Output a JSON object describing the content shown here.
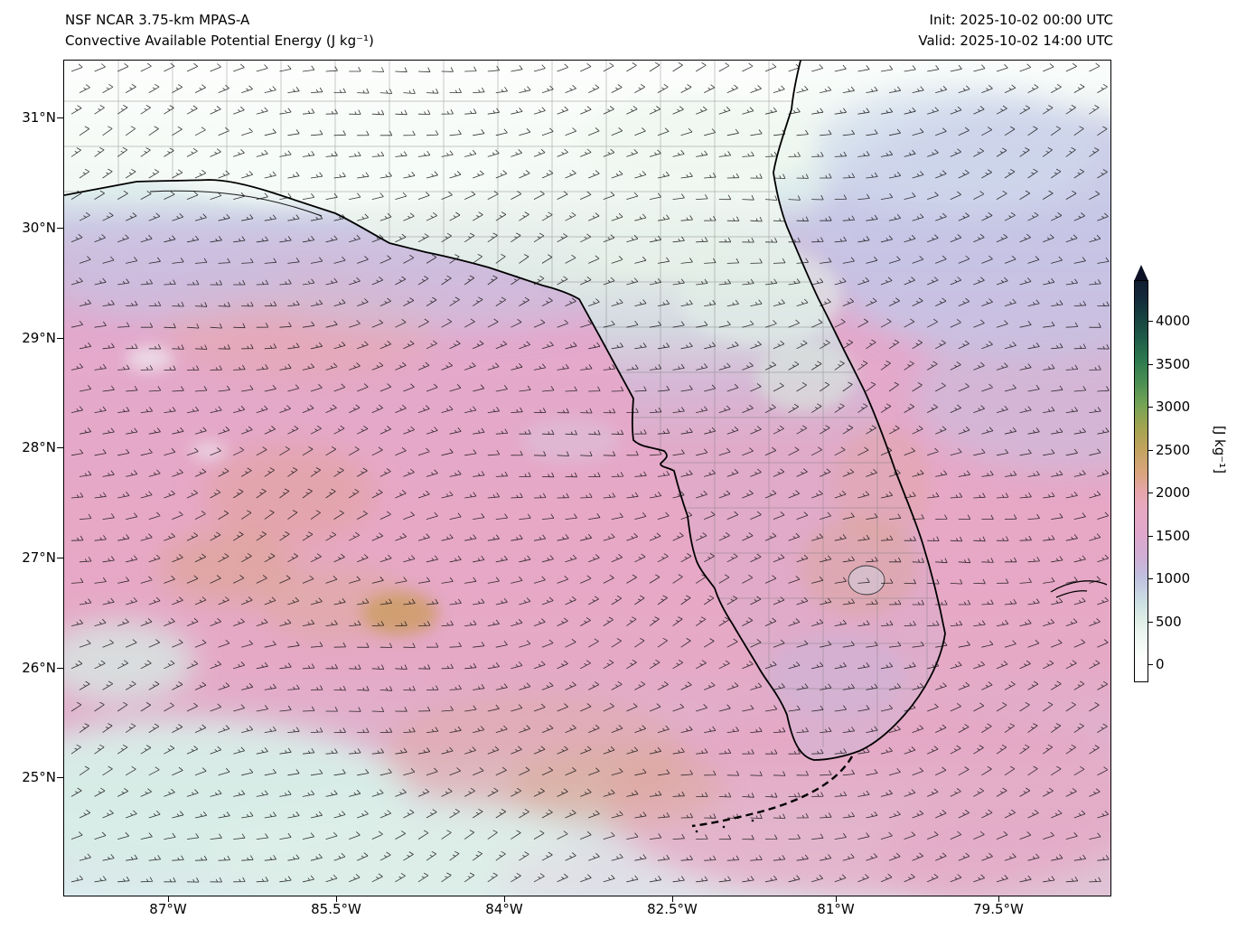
{
  "header": {
    "model": "NSF NCAR 3.75-km MPAS-A",
    "variable": "Convective Available Potential Energy (J kg⁻¹)",
    "init": "Init: 2025-10-02 00:00 UTC",
    "valid": "Valid: 2025-10-02 14:00 UTC"
  },
  "axes": {
    "lat": [
      "31°N",
      "30°N",
      "29°N",
      "28°N",
      "27°N",
      "26°N",
      "25°N"
    ],
    "lon": [
      "87°W",
      "85.5°W",
      "84°W",
      "82.5°W",
      "81°W",
      "79.5°W"
    ]
  },
  "colorbar": {
    "unit": "[J kg⁻¹]",
    "ticks": [
      "4000",
      "3500",
      "3000",
      "2500",
      "2000",
      "1500",
      "1000",
      "500",
      "0"
    ]
  },
  "chart_data": {
    "type": "heatmap",
    "title": "Convective Available Potential Energy (J kg⁻¹)",
    "model": "NSF NCAR 3.75-km MPAS-A",
    "init_time": "2025-10-02 00:00 UTC",
    "valid_time": "2025-10-02 14:00 UTC",
    "region": "Florida peninsula, southeastern US, eastern Gulf of Mexico, western Atlantic",
    "x_axis": {
      "label": "longitude",
      "ticks": [
        "87°W",
        "85.5°W",
        "84°W",
        "82.5°W",
        "81°W",
        "79.5°W"
      ],
      "range": [
        "87.9°W",
        "78.6°W"
      ]
    },
    "y_axis": {
      "label": "latitude",
      "ticks": [
        "31°N",
        "30°N",
        "29°N",
        "28°N",
        "27°N",
        "26°N",
        "25°N"
      ],
      "range": [
        "23.9°N",
        "31.5°N"
      ]
    },
    "colorbar": {
      "label": "[J kg⁻¹]",
      "tick_values": [
        0,
        500,
        1000,
        1500,
        2000,
        2500,
        3000,
        3500,
        4000
      ],
      "extend": "max-arrow at top",
      "colors_low_to_high": [
        "#ffffff",
        "#dfeee7",
        "#c0c0df",
        "#e0a7cc",
        "#e6a6ad",
        "#d9a47e",
        "#c2a35e",
        "#75a455",
        "#2e7a4f",
        "#16413f",
        "#101d30"
      ]
    },
    "overlays": [
      "wind barbs (predominantly easterly flow)",
      "coastlines",
      "county boundaries",
      "Florida Keys (dashed)",
      "Lake Okeechobee"
    ],
    "approx_field_values": [
      {
        "region": "inland Georgia / Alabama north of ~30.5°N",
        "cape_j_per_kg": "0-250"
      },
      {
        "region": "Gulf-coast transition band near 30°N",
        "cape_j_per_kg": "500-1000"
      },
      {
        "region": "open eastern Gulf of Mexico 25-29°N",
        "cape_j_per_kg": "1500-2000"
      },
      {
        "region": "patches west-central Gulf 26-28°N near 85.5-87°W",
        "cape_j_per_kg": "2000-2500"
      },
      {
        "region": "Atlantic east and northeast of Florida",
        "cape_j_per_kg": "1000-1500"
      },
      {
        "region": "north-central Florida peninsula",
        "cape_j_per_kg": "250-750"
      },
      {
        "region": "east-central Florida coast",
        "cape_j_per_kg": "1500-2200"
      },
      {
        "region": "South Florida and the Keys",
        "cape_j_per_kg": "1500-2000"
      },
      {
        "region": "far southwest corner of domain near 24.5°N",
        "cape_j_per_kg": "250-750"
      }
    ]
  }
}
